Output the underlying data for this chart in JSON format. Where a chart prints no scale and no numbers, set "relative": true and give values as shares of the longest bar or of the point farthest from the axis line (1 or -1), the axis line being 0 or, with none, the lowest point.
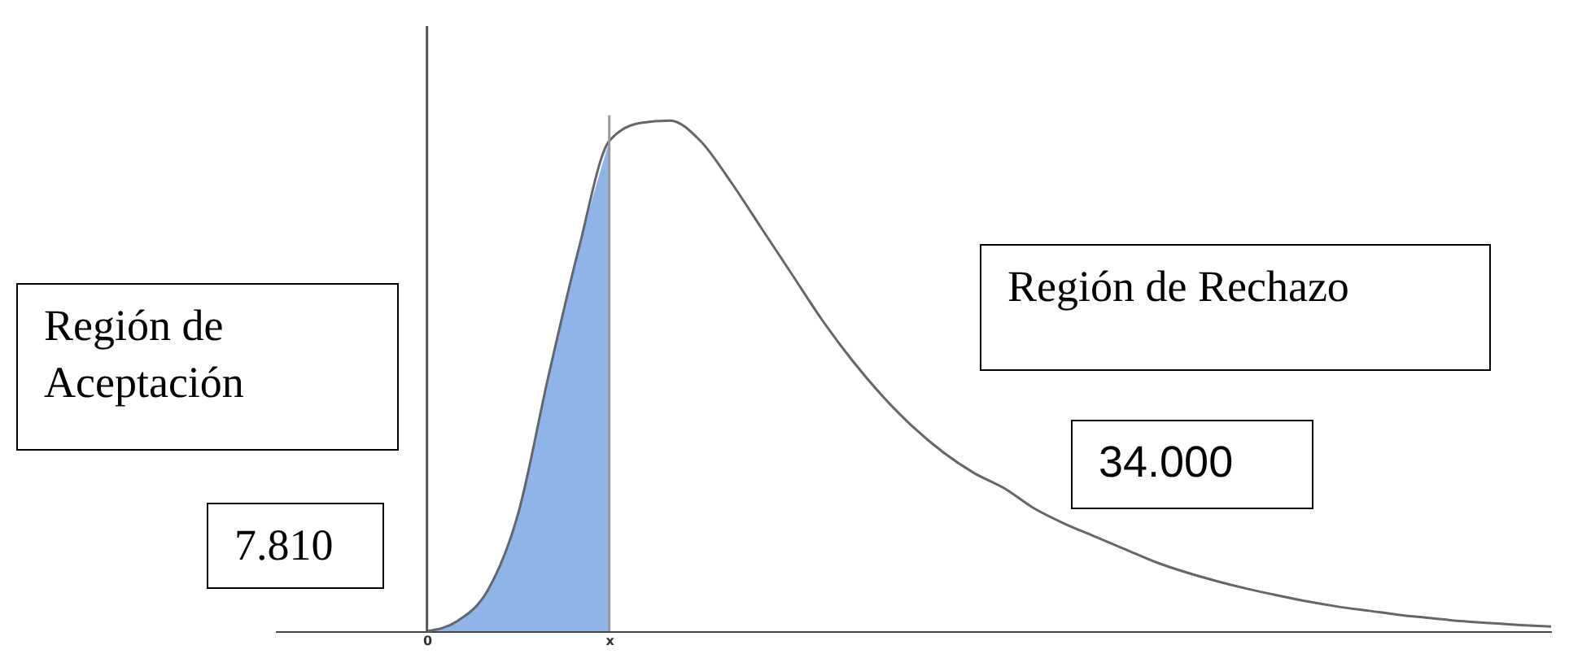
{
  "chart_data": {
    "type": "line",
    "relative": true,
    "categories": [
      null,
      null,
      null,
      null,
      null,
      "0",
      null,
      null,
      null,
      null,
      null,
      "x",
      null,
      null,
      null,
      null,
      null,
      null,
      null,
      null,
      null,
      null,
      null,
      null,
      null,
      null,
      null,
      null,
      null,
      null,
      null,
      null,
      null,
      null,
      null,
      null,
      null,
      null,
      null,
      null,
      null,
      null,
      null
    ],
    "series": [
      {
        "type": "area",
        "color": "#8fb4e8",
        "values": [
          null,
          null,
          null,
          null,
          null,
          0,
          0.02,
          0.08,
          0.23,
          0.5,
          0.75,
          0.96,
          null,
          null,
          null,
          null,
          null,
          null,
          null,
          null,
          null,
          null,
          null,
          null,
          null,
          null,
          null,
          null,
          null,
          null,
          null,
          null,
          null,
          null,
          null,
          null,
          null,
          null,
          null,
          null,
          null,
          null,
          null
        ]
      },
      {
        "color": "#666666",
        "values": [
          null,
          null,
          null,
          null,
          null,
          0,
          0.02,
          0.08,
          0.23,
          0.5,
          0.75,
          0.96,
          0.995,
          1,
          0.96,
          0.88,
          0.79,
          0.7,
          0.61,
          0.53,
          0.46,
          0.4,
          0.35,
          0.31,
          0.28,
          0.24,
          0.21,
          0.185,
          0.16,
          0.135,
          0.115,
          0.098,
          0.083,
          0.07,
          0.058,
          0.048,
          0.04,
          0.032,
          0.026,
          0.02,
          0.016,
          0.012,
          0.009
        ]
      }
    ],
    "ref_lines": [
      {
        "axis": "x",
        "value": "0",
        "color": "#555555"
      },
      {
        "axis": "x",
        "value": "x",
        "color": "#999999"
      }
    ],
    "annotations": [
      "Región de Aceptación",
      "Región de Rechazo",
      "34.000",
      "7.810"
    ],
    "grid": false
  }
}
